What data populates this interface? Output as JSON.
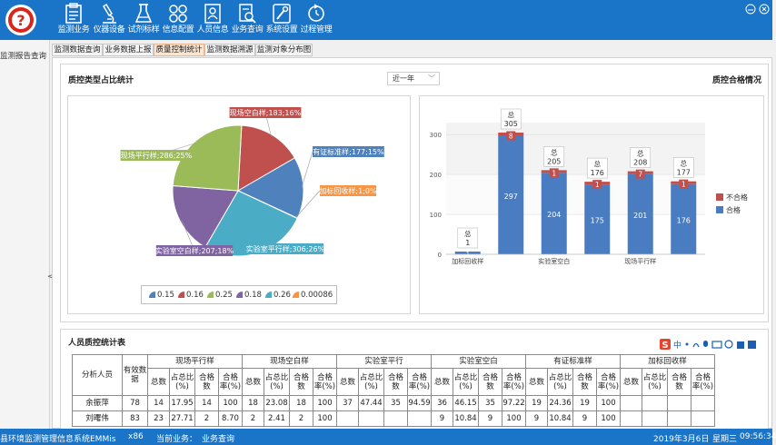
{
  "app": {
    "nav_items": [
      {
        "label": "监测业务",
        "icon": "clipboard-icon"
      },
      {
        "label": "仪器设备",
        "icon": "microscope-icon"
      },
      {
        "label": "试剂标样",
        "icon": "flask-icon"
      },
      {
        "label": "信息配置",
        "icon": "grid-icon"
      },
      {
        "label": "人员信息",
        "icon": "person-card-icon"
      },
      {
        "label": "业务查询",
        "icon": "document-search-icon"
      },
      {
        "label": "系统设置",
        "icon": "wrench-icon"
      },
      {
        "label": "过程管理",
        "icon": "cycle-icon"
      }
    ],
    "brand_color": "#1a74c8"
  },
  "sidebar": {
    "title": "监测报告查询",
    "collapse_glyph": "<"
  },
  "tabs": [
    {
      "label": "监测数据查询",
      "active": false
    },
    {
      "label": "业务数据上报",
      "active": false
    },
    {
      "label": "质量控制统计",
      "active": true
    },
    {
      "label": "监测数据溯源",
      "active": false
    },
    {
      "label": "监测对象分布图",
      "active": false
    }
  ],
  "qc_type_section": {
    "title": "质控类型占比统计",
    "period_select": "近一年"
  },
  "pass_section": {
    "title": "质控合格情况"
  },
  "chart_data": [
    {
      "type": "pie",
      "slices": [
        {
          "label": "现场空白样;183;16%",
          "value": 183,
          "percent": 16,
          "color": "#c0504d"
        },
        {
          "label": "有证标准样;177;15%",
          "value": 177,
          "percent": 15,
          "color": "#4f81bd"
        },
        {
          "label": "加标回收样;1;0%",
          "value": 1,
          "percent": 0,
          "color": "#f79646"
        },
        {
          "label": "实验室平行样;306;26%",
          "value": 306,
          "percent": 26,
          "color": "#4bacc6"
        },
        {
          "label": "实验室空白样;207;18%",
          "value": 207,
          "percent": 18,
          "color": "#8064a2"
        },
        {
          "label": "现场平行样;286;25%",
          "value": 286,
          "percent": 25,
          "color": "#9bbb59"
        }
      ],
      "legend": [
        {
          "label": "0.15",
          "color": "#4f81bd"
        },
        {
          "label": "0.16",
          "color": "#c0504d"
        },
        {
          "label": "0.25",
          "color": "#9bbb59"
        },
        {
          "label": "0.18",
          "color": "#8064a2"
        },
        {
          "label": "0.26",
          "color": "#4bacc6"
        },
        {
          "label": "0.00086",
          "color": "#f79646"
        }
      ]
    },
    {
      "type": "bar",
      "stacked": true,
      "categories": [
        "加标回收样",
        "",
        "实验室空白",
        "",
        "现场平行样",
        ""
      ],
      "series": [
        {
          "name": "合格",
          "values": [
            1,
            297,
            204,
            175,
            201,
            176
          ],
          "color": "#4a7cc1"
        },
        {
          "name": "不合格",
          "values": [
            0,
            8,
            1,
            1,
            7,
            1
          ],
          "color": "#c0504d"
        }
      ],
      "totals": [
        1,
        305,
        205,
        176,
        208,
        177
      ],
      "total_label": "总",
      "y_ticks": [
        0,
        100,
        200,
        300
      ],
      "ylim": [
        0,
        330
      ],
      "grid": true,
      "legend_position": "right"
    }
  ],
  "staff_table": {
    "title": "人员质控统计表",
    "col_analyst": "分析人员",
    "col_valid": "有效数据",
    "groups": [
      "现场平行样",
      "现场空白样",
      "实验室平行",
      "实验室空白",
      "有证标准样",
      "加标回收样"
    ],
    "sub_headers": [
      "总数",
      "占总比(%)",
      "合格数",
      "合格率(%)"
    ],
    "rows": [
      {
        "name": "余振萍",
        "valid": "78",
        "cells": [
          "14",
          "17.95",
          "14",
          "100",
          "18",
          "23.08",
          "18",
          "100",
          "37",
          "47.44",
          "35",
          "94.59",
          "36",
          "46.15",
          "35",
          "97.22",
          "19",
          "24.36",
          "19",
          "100",
          "",
          "",
          "",
          ""
        ]
      },
      {
        "name": "刘曙伟",
        "valid": "83",
        "cells": [
          "23",
          "27.71",
          "2",
          "8.70",
          "2",
          "2.41",
          "2",
          "100",
          "",
          "",
          "",
          "",
          "9",
          "10.84",
          "9",
          "100",
          "9",
          "10.84",
          "9",
          "100",
          "",
          "",
          "",
          ""
        ]
      }
    ]
  },
  "ime_toolbar": {
    "brand_glyph": "S",
    "lang_glyph": "中"
  },
  "statusbar": {
    "app_name": "县环境监测管理信息系统EMMis",
    "arch": "x86",
    "current_label": "当前业务：",
    "current_value": "业务查询",
    "date": "2019年3月6日",
    "weekday": "星期三",
    "time": "09:56:34"
  }
}
